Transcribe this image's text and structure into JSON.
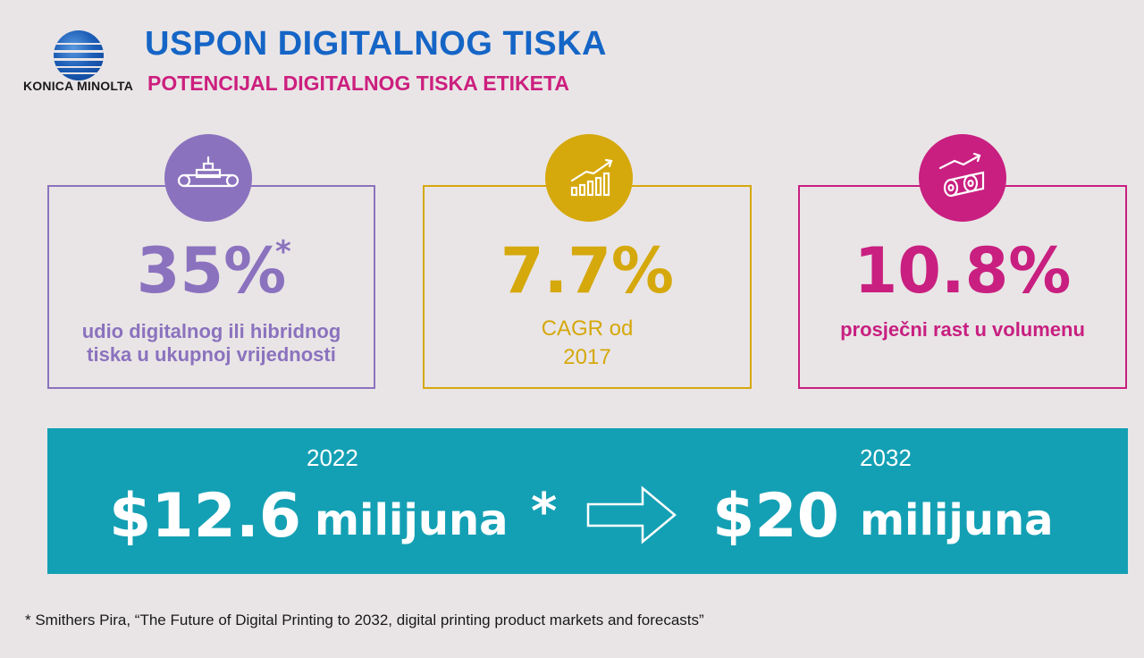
{
  "brand": {
    "logo_text": "KONICA MINOLTA"
  },
  "header": {
    "title": "USPON DIGITALNOG TISKA",
    "subtitle": "POTENCIJAL DIGITALNOG TISKA ETIKETA"
  },
  "stats": [
    {
      "icon": "printing-press-icon",
      "value": "35%",
      "marker": "*",
      "lines": [
        "udio digitalnog ili hibridnog",
        "tiska u ukupnoj vrijednosti"
      ],
      "color": "#8b72be"
    },
    {
      "icon": "growth-chart-icon",
      "value": "7.7%",
      "lines": [
        "CAGR od",
        "2017"
      ],
      "color": "#d5a80c"
    },
    {
      "icon": "label-rolls-icon",
      "value": "10.8%",
      "lines": [
        "prosječni rast u volumenu"
      ],
      "color": "#c81f80"
    }
  ],
  "banner": {
    "left": {
      "year": "2022",
      "amount": "$12.6",
      "unit": "milijuna",
      "marker": "*"
    },
    "right": {
      "year": "2032",
      "amount": "$20",
      "unit": "milijuna"
    },
    "arrow_icon": "arrow-right-icon",
    "color": "#14a0b4"
  },
  "footnote": "* Smithers Pira, “The Future of Digital Printing to 2032, digital printing product markets and forecasts”"
}
